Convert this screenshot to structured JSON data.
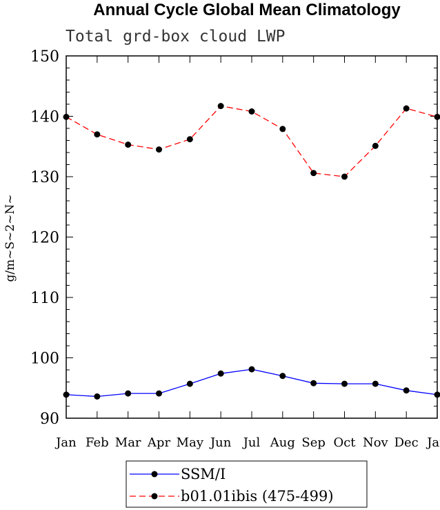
{
  "chart_data": {
    "type": "line",
    "title": "Annual Cycle Global Mean Climatology",
    "subtitle": "Total grd-box cloud LWP",
    "xlabel": "",
    "ylabel": "g/m~S~2~N~",
    "categories": [
      "Jan",
      "Feb",
      "Mar",
      "Apr",
      "May",
      "Jun",
      "Jul",
      "Aug",
      "Sep",
      "Oct",
      "Nov",
      "Dec",
      "Jan"
    ],
    "ylim": [
      90,
      150
    ],
    "yticks": [
      90,
      100,
      110,
      120,
      130,
      140,
      150
    ],
    "grid": false,
    "legend_position": "bottom",
    "series": [
      {
        "name": "SSM/I",
        "color": "#0000ff",
        "line_style": "solid",
        "marker": "filled-circle",
        "values": [
          93.9,
          93.6,
          94.1,
          94.1,
          95.7,
          97.4,
          98.1,
          97.0,
          95.8,
          95.7,
          95.7,
          94.6,
          93.9
        ]
      },
      {
        "name": "b01.01ibis (475-499)",
        "color": "#ff0000",
        "line_style": "dashed",
        "marker": "filled-circle",
        "values": [
          139.9,
          137.0,
          135.3,
          134.5,
          136.2,
          141.7,
          140.8,
          137.9,
          130.6,
          130.0,
          135.1,
          141.3,
          139.9
        ]
      }
    ]
  }
}
